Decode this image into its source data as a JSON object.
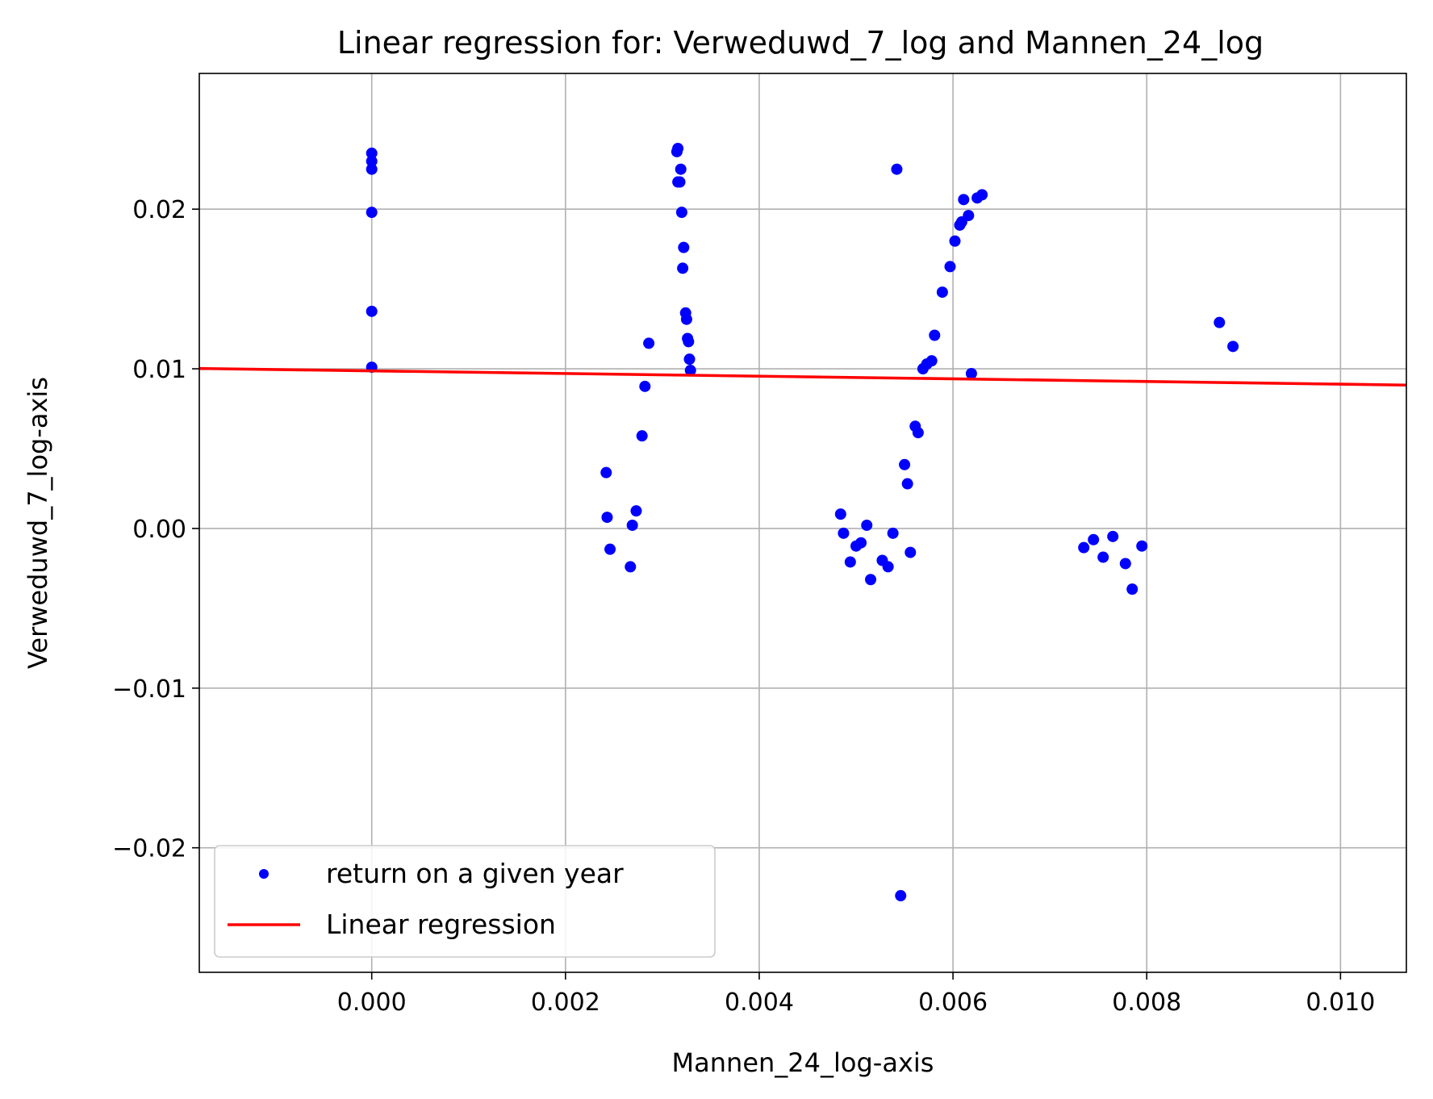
{
  "chart_data": {
    "type": "scatter",
    "title": "Linear regression for: Verweduwd_7_log and Mannen_24_log",
    "xlabel": "Mannen_24_log-axis",
    "ylabel": "Verweduwd_7_log-axis",
    "xlim": [
      -0.00178,
      0.01068
    ],
    "ylim": [
      -0.0278,
      0.0285
    ],
    "grid": true,
    "legend_placement": "lower-left",
    "x_ticks": [
      {
        "value": 0.0,
        "label": "0.000"
      },
      {
        "value": 0.002,
        "label": "0.002"
      },
      {
        "value": 0.004,
        "label": "0.004"
      },
      {
        "value": 0.006,
        "label": "0.006"
      },
      {
        "value": 0.008,
        "label": "0.008"
      },
      {
        "value": 0.01,
        "label": "0.010"
      }
    ],
    "y_ticks": [
      {
        "value": -0.02,
        "label": "−0.02"
      },
      {
        "value": -0.01,
        "label": "−0.01"
      },
      {
        "value": 0.0,
        "label": "0.00"
      },
      {
        "value": 0.01,
        "label": "0.01"
      },
      {
        "value": 0.02,
        "label": "0.02"
      }
    ],
    "series": [
      {
        "name": "return on a given year",
        "kind": "scatter",
        "color": "#0000ff",
        "points": [
          [
            0.0,
            0.0235
          ],
          [
            0.0,
            0.023
          ],
          [
            0.0,
            0.0225
          ],
          [
            0.0,
            0.0198
          ],
          [
            0.0,
            0.0136
          ],
          [
            0.0,
            0.0101
          ],
          [
            0.00242,
            0.0035
          ],
          [
            0.00243,
            0.0007
          ],
          [
            0.00246,
            -0.0013
          ],
          [
            0.00267,
            -0.0024
          ],
          [
            0.00269,
            0.0002
          ],
          [
            0.00273,
            0.0011
          ],
          [
            0.00279,
            0.0058
          ],
          [
            0.00282,
            0.0089
          ],
          [
            0.00286,
            0.0116
          ],
          [
            0.00315,
            0.0236
          ],
          [
            0.00316,
            0.0238
          ],
          [
            0.00316,
            0.0217
          ],
          [
            0.00318,
            0.0217
          ],
          [
            0.00319,
            0.0225
          ],
          [
            0.0032,
            0.0198
          ],
          [
            0.00321,
            0.0163
          ],
          [
            0.00322,
            0.0176
          ],
          [
            0.00324,
            0.0135
          ],
          [
            0.00325,
            0.0131
          ],
          [
            0.00326,
            0.0119
          ],
          [
            0.00327,
            0.0117
          ],
          [
            0.00328,
            0.0106
          ],
          [
            0.00329,
            0.0099
          ],
          [
            0.00484,
            0.0009
          ],
          [
            0.00487,
            -0.0003
          ],
          [
            0.00494,
            -0.0021
          ],
          [
            0.005,
            -0.0011
          ],
          [
            0.00505,
            -0.0009
          ],
          [
            0.00511,
            0.0002
          ],
          [
            0.00515,
            -0.0032
          ],
          [
            0.00527,
            -0.002
          ],
          [
            0.00533,
            -0.0024
          ],
          [
            0.00538,
            -0.0003
          ],
          [
            0.00542,
            0.0225
          ],
          [
            0.00546,
            -0.023
          ],
          [
            0.0055,
            0.004
          ],
          [
            0.00553,
            0.0028
          ],
          [
            0.00556,
            -0.0015
          ],
          [
            0.00561,
            0.0064
          ],
          [
            0.00564,
            0.006
          ],
          [
            0.00569,
            0.01
          ],
          [
            0.00573,
            0.0103
          ],
          [
            0.00578,
            0.0105
          ],
          [
            0.00581,
            0.0121
          ],
          [
            0.00589,
            0.0148
          ],
          [
            0.00597,
            0.0164
          ],
          [
            0.00602,
            0.018
          ],
          [
            0.00607,
            0.019
          ],
          [
            0.00609,
            0.0192
          ],
          [
            0.00611,
            0.0206
          ],
          [
            0.00616,
            0.0196
          ],
          [
            0.00619,
            0.0097
          ],
          [
            0.00625,
            0.0207
          ],
          [
            0.0063,
            0.0209
          ],
          [
            0.00735,
            -0.0012
          ],
          [
            0.00745,
            -0.0007
          ],
          [
            0.00755,
            -0.0018
          ],
          [
            0.00765,
            -0.0005
          ],
          [
            0.00778,
            -0.0022
          ],
          [
            0.00785,
            -0.0038
          ],
          [
            0.00795,
            -0.0011
          ],
          [
            0.00875,
            0.0129
          ],
          [
            0.00889,
            0.0114
          ]
        ]
      },
      {
        "name": "Linear regression",
        "kind": "line",
        "color": "#ff0000",
        "points": [
          [
            -0.00178,
            0.01002
          ],
          [
            0.01068,
            0.00898
          ]
        ]
      }
    ]
  }
}
